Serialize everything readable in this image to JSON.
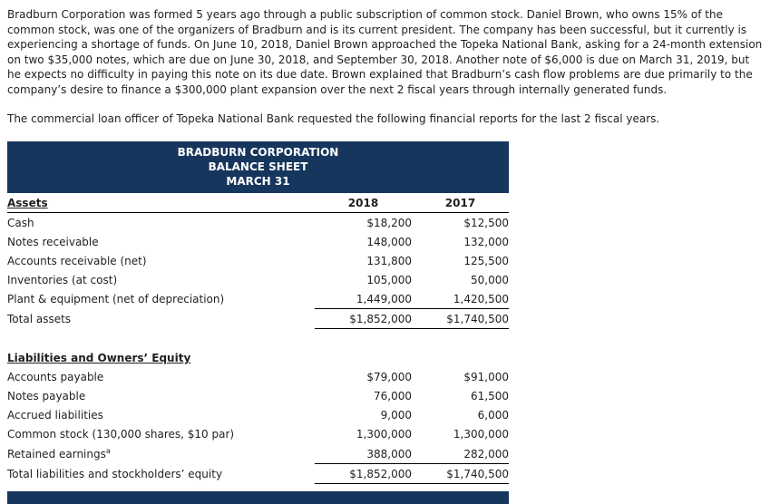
{
  "intro": {
    "p1": "Bradburn Corporation was formed 5 years ago through a public subscription of common stock. Daniel Brown, who owns 15% of the common stock, was one of the organizers of Bradburn and is its current president. The company has been successful, but it currently is experiencing a shortage of funds. On June 10, 2018, Daniel Brown approached the Topeka National Bank, asking for a 24-month extension on two $35,000 notes, which are due on June 30, 2018, and September 30, 2018. Another note of $6,000 is due on March 31, 2019, but he expects no difficulty in paying this note on its due date. Brown explained that Bradburn’s cash flow problems are due primarily to the company’s desire to finance a $300,000 plant expansion over the next 2 fiscal years through internally generated funds.",
    "p2": "The commercial loan officer of Topeka National Bank requested the following financial reports for the last 2 fiscal years."
  },
  "balance_sheet": {
    "title_line1": "BRADBURN CORPORATION",
    "title_line2": "BALANCE SHEET",
    "title_line3": "MARCH 31",
    "col_2018": "2018",
    "col_2017": "2017",
    "assets": {
      "header": "Assets",
      "rows": [
        {
          "label": "Cash",
          "y2018": "$18,200",
          "y2017": "$12,500"
        },
        {
          "label": "Notes receivable",
          "y2018": "148,000",
          "y2017": "132,000"
        },
        {
          "label": "Accounts receivable (net)",
          "y2018": "131,800",
          "y2017": "125,500"
        },
        {
          "label": "Inventories (at cost)",
          "y2018": "105,000",
          "y2017": "50,000"
        },
        {
          "label": "Plant & equipment (net of depreciation)",
          "y2018": "1,449,000",
          "y2017": "1,420,500"
        }
      ],
      "total": {
        "label": "Total assets",
        "y2018": "$1,852,000",
        "y2017": "$1,740,500"
      }
    },
    "liabilities": {
      "header": "Liabilities and Owners’ Equity",
      "rows": [
        {
          "label": "Accounts payable",
          "y2018": "$79,000",
          "y2017": "$91,000"
        },
        {
          "label": "Notes payable",
          "y2018": "76,000",
          "y2017": "61,500"
        },
        {
          "label": "Accrued liabilities",
          "y2018": "9,000",
          "y2017": "6,000"
        },
        {
          "label": "Common stock (130,000 shares, $10 par)",
          "y2018": "1,300,000",
          "y2017": "1,300,000"
        },
        {
          "label": "Retained earnings",
          "sup": "a",
          "y2018": "388,000",
          "y2017": "282,000"
        }
      ],
      "total": {
        "label": "Total liabilities and stockholders’ equity",
        "y2018": "$1,852,000",
        "y2017": "$1,740,500"
      }
    },
    "colors": {
      "header_bg": "#17365d",
      "header_text": "#ffffff"
    }
  }
}
